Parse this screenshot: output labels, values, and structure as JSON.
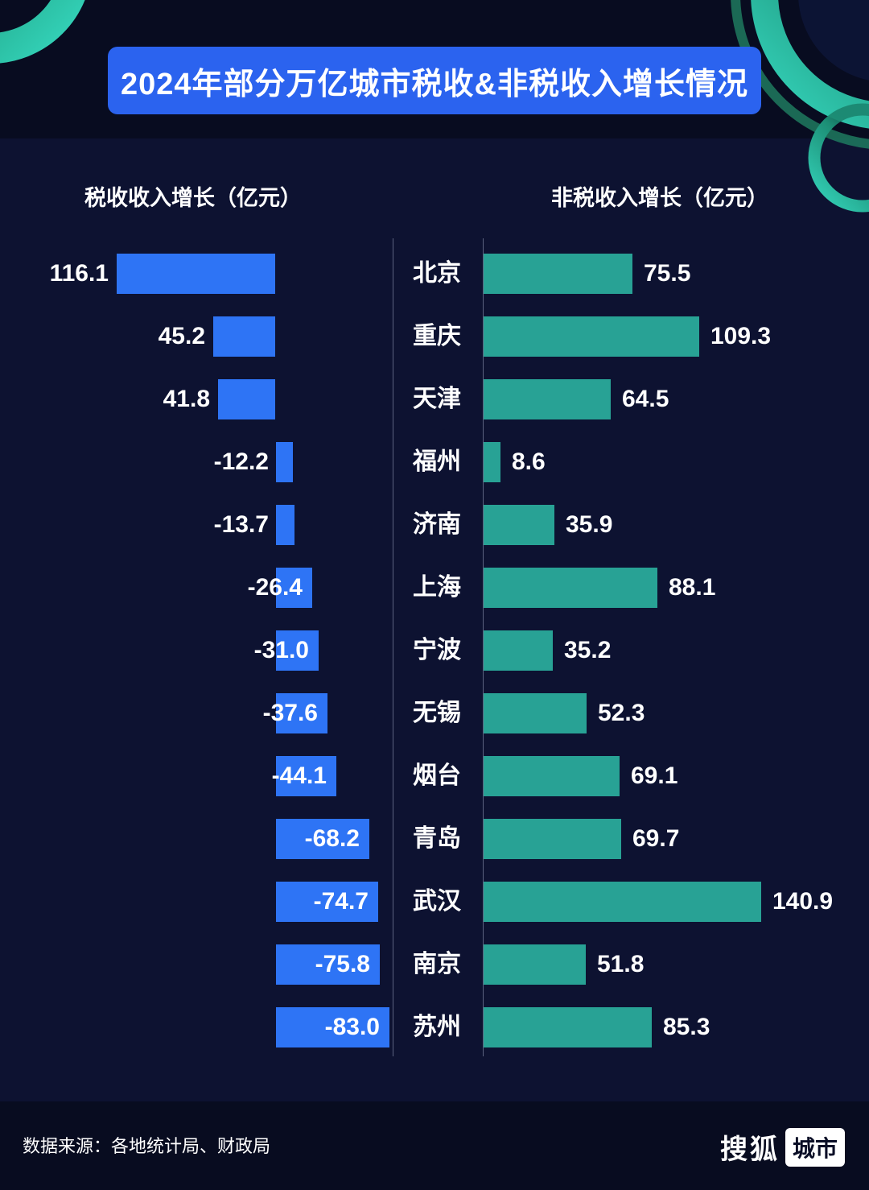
{
  "title": "2024年部分万亿城市税收&非税收入增长情况",
  "headers": {
    "left": "税收收入增长（亿元）",
    "right": "非税收入增长（亿元）"
  },
  "footer": {
    "source": "数据来源：各地统计局、财政局",
    "brand_text": "搜狐",
    "brand_badge": "城市"
  },
  "colors": {
    "tax_bar": "#2e74f5",
    "nontax_bar": "#28a295",
    "title_bg": "#2b63ef",
    "background": "#0d1231"
  },
  "chart_data": {
    "type": "bar",
    "orientation": "diverging-horizontal",
    "title": "2024年部分万亿城市税收&非税收入增长情况",
    "unit": "亿元",
    "legend_position": "column-headers",
    "grid": false,
    "categories": [
      "北京",
      "重庆",
      "天津",
      "福州",
      "济南",
      "上海",
      "宁波",
      "无锡",
      "烟台",
      "青岛",
      "武汉",
      "南京",
      "苏州"
    ],
    "series": [
      {
        "name": "税收收入增长（亿元）",
        "values": [
          116.1,
          45.2,
          41.8,
          -12.2,
          -13.7,
          -26.4,
          -31.0,
          -37.6,
          -44.1,
          -68.2,
          -74.7,
          -75.8,
          -83.0
        ],
        "labels": [
          "116.1",
          "45.2",
          "41.8",
          "-12.2",
          "-13.7",
          "-26.4",
          "-31.0",
          "-37.6",
          "-44.1",
          "-68.2",
          "-74.7",
          "-75.8",
          "-83.0"
        ]
      },
      {
        "name": "非税收入增长（亿元）",
        "values": [
          75.5,
          109.3,
          64.5,
          8.6,
          35.9,
          88.1,
          35.2,
          52.3,
          69.1,
          69.7,
          140.9,
          51.8,
          85.3
        ],
        "labels": [
          "75.5",
          "109.3",
          "64.5",
          "8.6",
          "35.9",
          "88.1",
          "35.2",
          "52.3",
          "69.1",
          "69.7",
          "140.9",
          "51.8",
          "85.3"
        ]
      }
    ],
    "xlim_left_series": [
      -90,
      120
    ],
    "xlim_right_series": [
      0,
      150
    ]
  }
}
